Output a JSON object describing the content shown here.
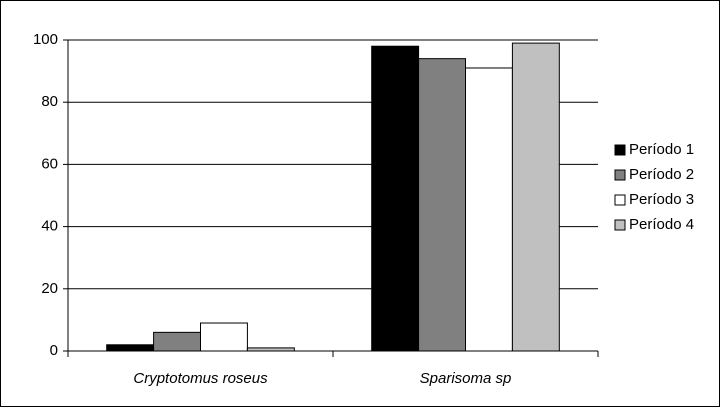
{
  "chart_data": {
    "type": "bar",
    "categories": [
      "Cryptotomus roseus",
      "Sparisoma sp"
    ],
    "series": [
      {
        "name": "Período 1",
        "color": "#000000",
        "values": [
          2,
          98
        ]
      },
      {
        "name": "Período 2",
        "color": "#808080",
        "values": [
          6,
          94
        ]
      },
      {
        "name": "Período 3",
        "color": "#ffffff",
        "values": [
          9,
          91
        ]
      },
      {
        "name": "Período 4",
        "color": "#c0c0c0",
        "values": [
          1,
          99
        ]
      }
    ],
    "ylim": [
      0,
      100
    ],
    "yticks": [
      0,
      20,
      40,
      60,
      80,
      100
    ],
    "grid": true,
    "legend": "right"
  }
}
